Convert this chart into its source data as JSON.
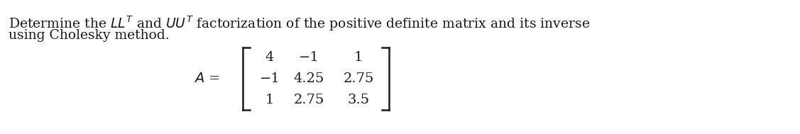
{
  "background_color": "#ffffff",
  "text_color": "#1a1a1a",
  "line1": "Determine the $LL^T$ and $UU^T$ factorization of the positive definite matrix and its inverse",
  "line2": "using Cholesky method.",
  "matrix_label": "$A$ =",
  "matrix": [
    [
      "4",
      "−1",
      "1"
    ],
    [
      "−1",
      "4.25",
      "2.75"
    ],
    [
      "1",
      "2.75",
      "3.5"
    ]
  ],
  "figsize": [
    11.27,
    1.89
  ],
  "dpi": 100,
  "font_size_text": 13.5,
  "font_size_matrix": 14.0
}
